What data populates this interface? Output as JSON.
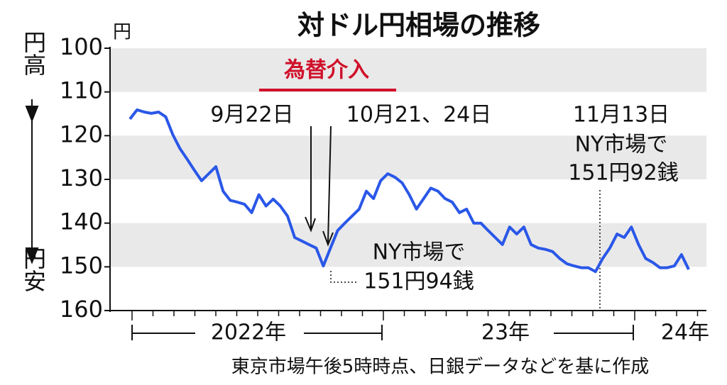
{
  "chart_data": {
    "type": "line",
    "title": "対ドル円相場の推移",
    "y_unit": "円",
    "y_side_labels": [
      "円高",
      "円安"
    ],
    "ylim": [
      100,
      160
    ],
    "y_inverted": true,
    "yticks": [
      100,
      110,
      120,
      130,
      140,
      150,
      160
    ],
    "grid_bands": true,
    "x_groups": [
      "2022年",
      "23年",
      "24年"
    ],
    "categories": [
      null,
      null,
      null,
      null,
      null,
      null,
      null,
      null,
      null,
      null,
      null,
      null,
      null,
      null,
      null,
      null,
      null,
      null,
      null,
      null,
      null,
      null,
      null,
      null,
      null,
      null,
      null,
      null,
      null,
      null,
      null,
      null,
      null,
      null,
      null,
      null,
      null,
      null,
      null,
      null,
      null,
      null,
      null,
      null,
      null,
      null,
      null,
      null,
      null,
      null,
      null,
      null,
      null,
      null,
      null,
      null,
      null,
      null,
      null,
      null,
      null,
      null,
      null,
      null,
      null,
      null,
      null,
      null,
      null,
      null,
      null,
      null,
      null,
      null,
      null,
      null,
      null,
      null,
      null
    ],
    "series": [
      {
        "name": "円相場",
        "color": "#2a57e8",
        "values": [
          116.2,
          114.1,
          114.6,
          114.9,
          114.6,
          115.7,
          119.8,
          123.0,
          125.4,
          127.9,
          130.3,
          128.7,
          127.1,
          132.7,
          134.8,
          135.2,
          135.7,
          137.6,
          133.5,
          136.1,
          134.5,
          136.1,
          138.4,
          143.3,
          144.1,
          144.9,
          145.7,
          149.8,
          145.7,
          141.7,
          140.0,
          138.4,
          136.8,
          132.7,
          134.4,
          130.3,
          128.7,
          129.5,
          130.8,
          133.5,
          136.8,
          134.4,
          132.0,
          132.7,
          134.4,
          135.2,
          137.6,
          136.8,
          140.0,
          140.0,
          141.7,
          143.3,
          144.9,
          140.9,
          142.5,
          140.9,
          144.9,
          145.7,
          146.0,
          146.5,
          148.1,
          149.3,
          149.8,
          150.2,
          150.2,
          151.1,
          148.1,
          145.7,
          142.5,
          143.3,
          140.9,
          144.9,
          148.1,
          149.0,
          150.2,
          150.2,
          149.8,
          147.2,
          150.6
        ]
      }
    ],
    "annotations": [
      "為替介入",
      "9月22日",
      "10月21、24日",
      "NY市場で",
      "151円94銭",
      "11月13日",
      "NY市場で",
      "151円92銭"
    ],
    "source": "東京市場午後5時時点、日銀データなどを基に作成"
  }
}
